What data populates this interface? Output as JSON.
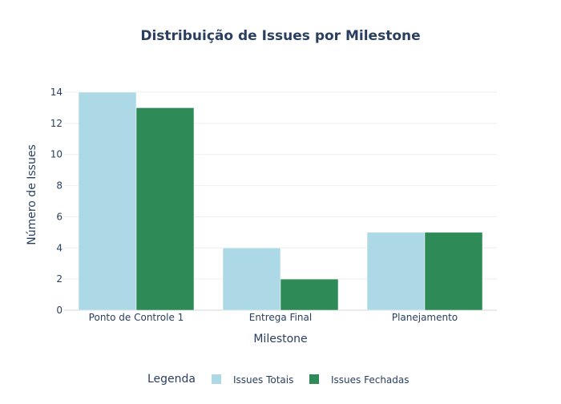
{
  "chart_data": {
    "type": "bar",
    "title": "Distribuição de Issues por Milestone",
    "xlabel": "Milestone",
    "ylabel": "Número de Issues",
    "categories": [
      "Ponto de Controle 1",
      "Entrega Final",
      "Planejamento"
    ],
    "series": [
      {
        "name": "Issues Totais",
        "values": [
          14,
          4,
          5
        ],
        "color": "#add8e6"
      },
      {
        "name": "Issues Fechadas",
        "values": [
          13,
          2,
          5
        ],
        "color": "#2e8b57"
      }
    ],
    "ylim": [
      0,
      14
    ],
    "yticks": [
      0,
      2,
      4,
      6,
      8,
      10,
      12,
      14
    ],
    "grid": true,
    "legend": {
      "title": "Legenda",
      "placement": "bottom-center",
      "orientation": "horizontal"
    }
  }
}
